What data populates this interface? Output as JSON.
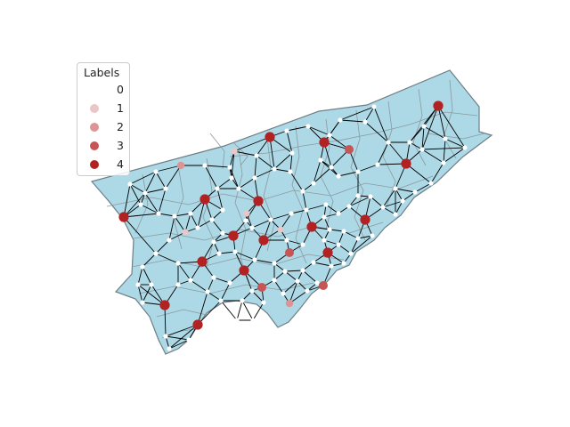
{
  "legend": {
    "title": "Labels",
    "items": [
      {
        "label": "0",
        "color": "#ffffff"
      },
      {
        "label": "1",
        "color": "#eac6c6"
      },
      {
        "label": "2",
        "color": "#dd9494"
      },
      {
        "label": "3",
        "color": "#c85555"
      },
      {
        "label": "4",
        "color": "#b22222"
      }
    ]
  },
  "colors": {
    "land": "#add8e6",
    "boundary": "#6e7f86",
    "edge": "#000000"
  }
}
